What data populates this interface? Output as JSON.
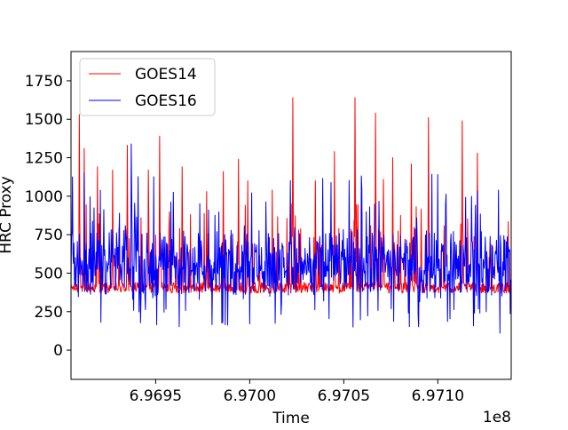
{
  "chart_data": {
    "type": "line",
    "title": "",
    "xlabel": "Time",
    "ylabel": "HRC Proxy",
    "x_offset_label": "1e8",
    "xlim": [
      6.96905,
      6.97139
    ],
    "ylim": [
      -190,
      1940
    ],
    "x_ticks": [
      6.9695,
      6.97,
      6.9705,
      6.971
    ],
    "x_tick_labels": [
      "6.9695",
      "6.9700",
      "6.9705",
      "6.9710"
    ],
    "y_ticks": [
      0,
      250,
      500,
      750,
      1000,
      1250,
      1500,
      1750
    ],
    "y_tick_labels": [
      "0",
      "250",
      "500",
      "750",
      "1000",
      "1250",
      "1500",
      "1750"
    ],
    "grid": false,
    "legend_position": "top-left",
    "series": [
      {
        "name": "GOES14",
        "color": "#ff0000",
        "baseline": 410,
        "spikes": [
          [
            6.969095,
            1530
          ],
          [
            6.96912,
            1310
          ],
          [
            6.96919,
            1190
          ],
          [
            6.96927,
            1170
          ],
          [
            6.96935,
            1330
          ],
          [
            6.96946,
            1170
          ],
          [
            6.96952,
            1390
          ],
          [
            6.96964,
            1190
          ],
          [
            6.96977,
            1030
          ],
          [
            6.96986,
            1160
          ],
          [
            6.96994,
            1240
          ],
          [
            6.96999,
            1100
          ],
          [
            6.97012,
            1040
          ],
          [
            6.97023,
            1640
          ],
          [
            6.97035,
            1100
          ],
          [
            6.97045,
            1290
          ],
          [
            6.97056,
            1640
          ],
          [
            6.97067,
            1540
          ],
          [
            6.97071,
            1110
          ],
          [
            6.97076,
            1250
          ],
          [
            6.97086,
            1210
          ],
          [
            6.97095,
            1510
          ],
          [
            6.97113,
            1490
          ],
          [
            6.97121,
            1280
          ]
        ]
      },
      {
        "name": "GOES16",
        "color": "#0000ff",
        "baseline": 560,
        "min_value": 110,
        "max_value": 1340
      }
    ]
  }
}
